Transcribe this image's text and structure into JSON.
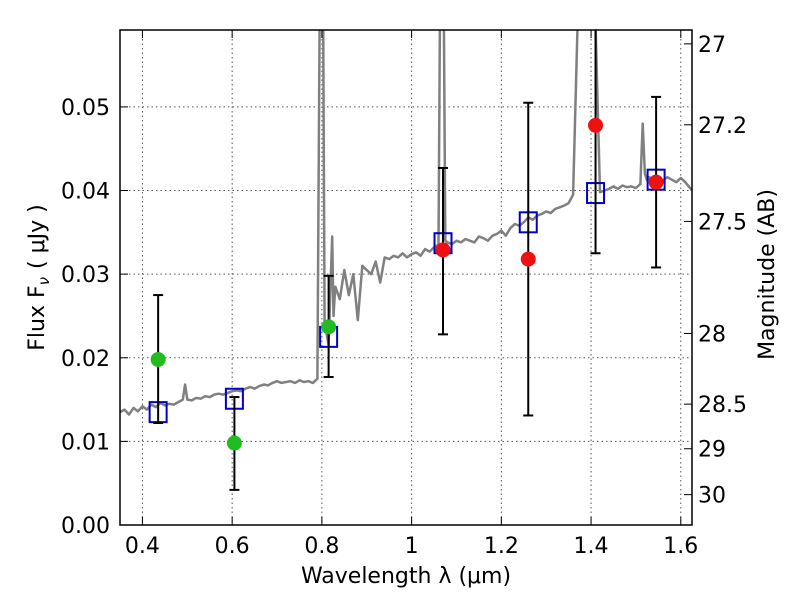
{
  "chart_data": {
    "type": "scatter",
    "title": "",
    "xlabel": "Wavelength  λ (μm)",
    "ylabel": "Flux  F",
    "ylabel_sub": "ν",
    "ylabel_unit": "(  μJy  )",
    "y2label": "Magnitude (AB)",
    "xlim": [
      0.35,
      1.625
    ],
    "ylim": [
      0.0,
      0.0592
    ],
    "grid": true,
    "xticks": [
      0.4,
      0.6,
      0.8,
      1.0,
      1.2,
      1.4,
      1.6
    ],
    "xtick_labels": [
      "0.4",
      "0.6",
      "0.8",
      "1",
      "1.2",
      "1.4",
      "1.6"
    ],
    "yticks": [
      0.0,
      0.01,
      0.02,
      0.03,
      0.04,
      0.05
    ],
    "ytick_labels": [
      "0.00",
      "0.01",
      "0.02",
      "0.03",
      "0.04",
      "0.05"
    ],
    "y2ticks": [
      27,
      27.2,
      27.5,
      28,
      28.5,
      29,
      30
    ],
    "y2tick_labels": [
      "27",
      "27.2",
      "27.5",
      "28",
      "28.5",
      "29",
      "30"
    ],
    "template_spectrum": {
      "color": "#808080",
      "x": [
        0.35,
        0.36,
        0.37,
        0.38,
        0.39,
        0.4,
        0.41,
        0.42,
        0.43,
        0.44,
        0.45,
        0.46,
        0.47,
        0.48,
        0.49,
        0.495,
        0.5,
        0.51,
        0.52,
        0.53,
        0.54,
        0.55,
        0.56,
        0.57,
        0.58,
        0.59,
        0.6,
        0.61,
        0.62,
        0.63,
        0.64,
        0.65,
        0.66,
        0.67,
        0.68,
        0.69,
        0.7,
        0.71,
        0.72,
        0.73,
        0.74,
        0.75,
        0.76,
        0.77,
        0.78,
        0.79,
        0.795,
        0.797,
        0.799,
        0.801,
        0.803,
        0.806,
        0.81,
        0.815,
        0.82,
        0.823,
        0.826,
        0.83,
        0.84,
        0.85,
        0.86,
        0.87,
        0.88,
        0.89,
        0.9,
        0.91,
        0.92,
        0.93,
        0.94,
        0.95,
        0.96,
        0.97,
        0.98,
        0.99,
        1.0,
        1.01,
        1.02,
        1.03,
        1.04,
        1.05,
        1.06,
        1.063,
        1.066,
        1.069,
        1.072,
        1.075,
        1.08,
        1.09,
        1.1,
        1.11,
        1.12,
        1.13,
        1.14,
        1.15,
        1.16,
        1.17,
        1.18,
        1.19,
        1.2,
        1.21,
        1.22,
        1.23,
        1.24,
        1.25,
        1.26,
        1.27,
        1.28,
        1.29,
        1.3,
        1.31,
        1.32,
        1.33,
        1.34,
        1.35,
        1.36,
        1.37,
        1.38,
        1.39,
        1.4,
        1.41,
        1.42,
        1.43,
        1.44,
        1.45,
        1.46,
        1.47,
        1.48,
        1.49,
        1.5,
        1.51,
        1.515,
        1.52,
        1.525,
        1.53,
        1.54,
        1.55,
        1.56,
        1.57,
        1.58,
        1.59,
        1.6,
        1.61,
        1.625
      ],
      "y": [
        0.0135,
        0.0138,
        0.0132,
        0.014,
        0.0136,
        0.0142,
        0.0138,
        0.0144,
        0.0141,
        0.0146,
        0.0143,
        0.0145,
        0.0144,
        0.0147,
        0.015,
        0.0168,
        0.015,
        0.0149,
        0.0152,
        0.0151,
        0.0154,
        0.0153,
        0.0156,
        0.0157,
        0.0156,
        0.0158,
        0.016,
        0.0161,
        0.016,
        0.0163,
        0.0165,
        0.0163,
        0.0166,
        0.0168,
        0.0167,
        0.017,
        0.0172,
        0.017,
        0.0171,
        0.0172,
        0.017,
        0.0173,
        0.0171,
        0.0172,
        0.017,
        0.0175,
        0.06,
        0.06,
        0.06,
        0.06,
        0.06,
        0.024,
        0.023,
        0.0215,
        0.03,
        0.0345,
        0.025,
        0.0285,
        0.027,
        0.0305,
        0.0275,
        0.03,
        0.0245,
        0.031,
        0.0305,
        0.03,
        0.0315,
        0.029,
        0.032,
        0.0318,
        0.0322,
        0.032,
        0.0325,
        0.032,
        0.0324,
        0.0326,
        0.0322,
        0.033,
        0.0327,
        0.0332,
        0.0335,
        0.06,
        0.06,
        0.06,
        0.06,
        0.034,
        0.0338,
        0.0336,
        0.034,
        0.0338,
        0.0342,
        0.034,
        0.0338,
        0.0345,
        0.0343,
        0.034,
        0.0346,
        0.0348,
        0.0352,
        0.0346,
        0.0355,
        0.036,
        0.0358,
        0.0362,
        0.0368,
        0.0365,
        0.037,
        0.0372,
        0.0375,
        0.0373,
        0.0378,
        0.038,
        0.0382,
        0.0385,
        0.0395,
        0.06,
        0.06,
        0.06,
        0.06,
        0.06,
        0.0398,
        0.04,
        0.0402,
        0.0405,
        0.0402,
        0.0406,
        0.0404,
        0.0405,
        0.0403,
        0.0408,
        0.048,
        0.042,
        0.0412,
        0.0416,
        0.0412,
        0.0414,
        0.0412,
        0.0416,
        0.0413,
        0.041,
        0.0415,
        0.041,
        0.04
      ]
    },
    "model_photometry": {
      "marker": "open-square",
      "color": "#0000cc",
      "x": [
        0.435,
        0.605,
        0.815,
        1.07,
        1.26,
        1.41,
        1.545
      ],
      "y": [
        0.0135,
        0.0151,
        0.0225,
        0.0337,
        0.0362,
        0.0397,
        0.0413
      ]
    },
    "observed_photometry": [
      {
        "color": "#22bb22",
        "x": 0.435,
        "y": 0.0198,
        "err_low": 0.0122,
        "err_high": 0.0275
      },
      {
        "color": "#22bb22",
        "x": 0.605,
        "y": 0.0098,
        "err_low": 0.0042,
        "err_high": 0.0153
      },
      {
        "color": "#22bb22",
        "x": 0.815,
        "y": 0.0237,
        "err_low": 0.0177,
        "err_high": 0.0298
      },
      {
        "color": "#ee1111",
        "x": 1.07,
        "y": 0.0329,
        "err_low": 0.0228,
        "err_high": 0.0427
      },
      {
        "color": "#ee1111",
        "x": 1.26,
        "y": 0.0318,
        "err_low": 0.0131,
        "err_high": 0.0505
      },
      {
        "color": "#ee1111",
        "x": 1.41,
        "y": 0.0478,
        "err_low": 0.0325,
        "err_high": 0.06
      },
      {
        "color": "#ee1111",
        "x": 1.545,
        "y": 0.041,
        "err_low": 0.0308,
        "err_high": 0.0512
      }
    ]
  }
}
